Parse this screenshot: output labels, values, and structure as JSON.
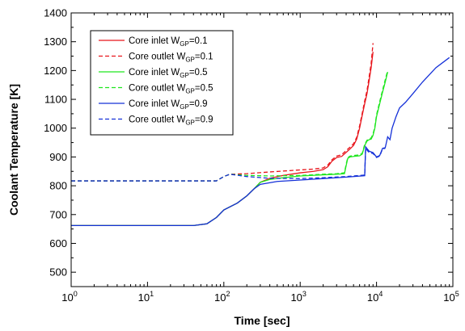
{
  "chart_data": {
    "type": "line",
    "xlabel": "Time [sec]",
    "ylabel": "Coolant Temperature [K]",
    "x_scale": "log",
    "xlim": [
      1,
      100000
    ],
    "ylim": [
      450,
      1400
    ],
    "x_ticks": [
      {
        "value": 1,
        "base": "10",
        "exp": "0"
      },
      {
        "value": 10,
        "base": "10",
        "exp": "1"
      },
      {
        "value": 100,
        "base": "10",
        "exp": "2"
      },
      {
        "value": 1000,
        "base": "10",
        "exp": "3"
      },
      {
        "value": 10000,
        "base": "10",
        "exp": "4"
      },
      {
        "value": 100000,
        "base": "10",
        "exp": "5"
      }
    ],
    "y_ticks": [
      500,
      600,
      700,
      800,
      900,
      1000,
      1100,
      1200,
      1300,
      1400
    ],
    "grid": false,
    "legend_position": "top-left",
    "series": [
      {
        "name_prefix": "Core inlet W",
        "name_sub": "GP",
        "name_suffix": "=0.1",
        "color": "#e8141b",
        "dash": false,
        "points": [
          [
            1,
            662
          ],
          [
            40,
            662
          ],
          [
            60,
            668
          ],
          [
            80,
            690
          ],
          [
            100,
            716
          ],
          [
            150,
            740
          ],
          [
            200,
            765
          ],
          [
            250,
            790
          ],
          [
            300,
            812
          ],
          [
            400,
            826
          ],
          [
            600,
            836
          ],
          [
            1000,
            845
          ],
          [
            1500,
            850
          ],
          [
            2000,
            856
          ],
          [
            2300,
            866
          ],
          [
            2600,
            885
          ],
          [
            3000,
            898
          ],
          [
            3500,
            902
          ],
          [
            4000,
            916
          ],
          [
            4500,
            928
          ],
          [
            5000,
            940
          ],
          [
            5500,
            962
          ],
          [
            6000,
            1000
          ],
          [
            6500,
            1045
          ],
          [
            7000,
            1085
          ],
          [
            7500,
            1120
          ],
          [
            8000,
            1165
          ],
          [
            8500,
            1210
          ],
          [
            9000,
            1265
          ]
        ]
      },
      {
        "name_prefix": "Core outlet W",
        "name_sub": "GP",
        "name_suffix": "=0.1",
        "color": "#e8141b",
        "dash": true,
        "points": [
          [
            1,
            817
          ],
          [
            80,
            817
          ],
          [
            100,
            832
          ],
          [
            120,
            840
          ],
          [
            200,
            842
          ],
          [
            400,
            848
          ],
          [
            1000,
            855
          ],
          [
            1500,
            858
          ],
          [
            2000,
            862
          ],
          [
            2300,
            872
          ],
          [
            2600,
            890
          ],
          [
            3000,
            903
          ],
          [
            3500,
            908
          ],
          [
            4000,
            922
          ],
          [
            4500,
            934
          ],
          [
            5000,
            946
          ],
          [
            5500,
            968
          ],
          [
            6000,
            1008
          ],
          [
            6500,
            1052
          ],
          [
            7000,
            1095
          ],
          [
            7500,
            1130
          ],
          [
            8000,
            1178
          ],
          [
            8500,
            1225
          ],
          [
            9000,
            1295
          ]
        ]
      },
      {
        "name_prefix": "Core inlet W",
        "name_sub": "GP",
        "name_suffix": "=0.5",
        "color": "#1ee61e",
        "dash": false,
        "points": [
          [
            1,
            662
          ],
          [
            40,
            662
          ],
          [
            60,
            668
          ],
          [
            80,
            690
          ],
          [
            100,
            716
          ],
          [
            150,
            740
          ],
          [
            200,
            765
          ],
          [
            250,
            790
          ],
          [
            300,
            812
          ],
          [
            400,
            822
          ],
          [
            600,
            828
          ],
          [
            1000,
            834
          ],
          [
            2000,
            838
          ],
          [
            3000,
            840
          ],
          [
            3800,
            842
          ],
          [
            4000,
            870
          ],
          [
            4200,
            895
          ],
          [
            4500,
            900
          ],
          [
            5000,
            902
          ],
          [
            6000,
            904
          ],
          [
            6500,
            910
          ],
          [
            7000,
            940
          ],
          [
            7500,
            955
          ],
          [
            8000,
            960
          ],
          [
            8500,
            962
          ],
          [
            9000,
            975
          ],
          [
            9500,
            1000
          ],
          [
            10000,
            1040
          ],
          [
            11000,
            1085
          ],
          [
            12000,
            1125
          ],
          [
            13000,
            1160
          ],
          [
            14000,
            1195
          ]
        ]
      },
      {
        "name_prefix": "Core outlet W",
        "name_sub": "GP",
        "name_suffix": "=0.5",
        "color": "#1ee61e",
        "dash": true,
        "points": [
          [
            1,
            817
          ],
          [
            80,
            817
          ],
          [
            100,
            832
          ],
          [
            120,
            840
          ],
          [
            200,
            836
          ],
          [
            400,
            834
          ],
          [
            1000,
            836
          ],
          [
            2000,
            840
          ],
          [
            3000,
            842
          ],
          [
            3800,
            845
          ],
          [
            4000,
            875
          ],
          [
            4200,
            898
          ],
          [
            4500,
            903
          ],
          [
            5000,
            905
          ],
          [
            6000,
            907
          ],
          [
            6500,
            913
          ],
          [
            7000,
            944
          ],
          [
            7500,
            958
          ],
          [
            8000,
            963
          ],
          [
            8500,
            966
          ],
          [
            9000,
            980
          ],
          [
            9500,
            1005
          ],
          [
            10000,
            1046
          ],
          [
            11000,
            1092
          ],
          [
            12000,
            1132
          ],
          [
            13000,
            1168
          ],
          [
            14000,
            1200
          ]
        ]
      },
      {
        "name_prefix": "Core inlet W",
        "name_sub": "GP",
        "name_suffix": "=0.9",
        "color": "#1430d8",
        "dash": false,
        "points": [
          [
            1,
            662
          ],
          [
            40,
            662
          ],
          [
            60,
            668
          ],
          [
            80,
            690
          ],
          [
            100,
            716
          ],
          [
            150,
            740
          ],
          [
            200,
            765
          ],
          [
            250,
            790
          ],
          [
            300,
            805
          ],
          [
            500,
            815
          ],
          [
            1000,
            820
          ],
          [
            2000,
            825
          ],
          [
            4000,
            830
          ],
          [
            7000,
            835
          ],
          [
            7200,
            935
          ],
          [
            8000,
            920
          ],
          [
            9000,
            915
          ],
          [
            10000,
            900
          ],
          [
            11000,
            905
          ],
          [
            12000,
            930
          ],
          [
            13000,
            932
          ],
          [
            14000,
            970
          ],
          [
            15000,
            960
          ],
          [
            16000,
            1000
          ],
          [
            18000,
            1040
          ],
          [
            20000,
            1070
          ],
          [
            24000,
            1090
          ],
          [
            30000,
            1120
          ],
          [
            40000,
            1160
          ],
          [
            60000,
            1210
          ],
          [
            90000,
            1245
          ]
        ]
      },
      {
        "name_prefix": "Core outlet W",
        "name_sub": "GP",
        "name_suffix": "=0.9",
        "color": "#1430d8",
        "dash": true,
        "points": [
          [
            1,
            817
          ],
          [
            80,
            817
          ],
          [
            100,
            832
          ],
          [
            120,
            840
          ],
          [
            200,
            832
          ],
          [
            400,
            826
          ],
          [
            1000,
            825
          ],
          [
            2000,
            828
          ],
          [
            4000,
            832
          ],
          [
            7000,
            837
          ],
          [
            7200,
            930
          ],
          [
            8000,
            915
          ],
          [
            9000,
            912
          ],
          [
            10000,
            898
          ],
          [
            11000,
            903
          ],
          [
            12000,
            928
          ],
          [
            13000,
            930
          ]
        ]
      }
    ]
  }
}
